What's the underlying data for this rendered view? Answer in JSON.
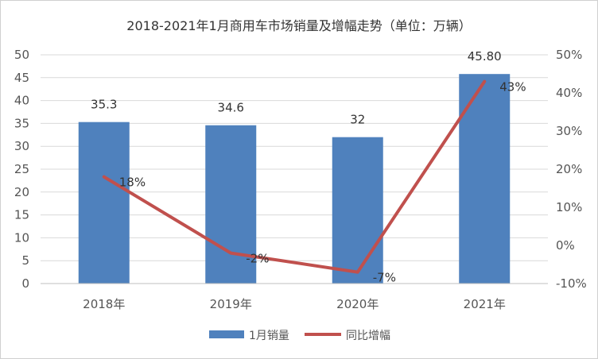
{
  "chart_data": {
    "type": "bar",
    "title": "2018-2021年1月商用车市场销量及增幅走势（单位：万辆）",
    "categories": [
      "2018年",
      "2019年",
      "2020年",
      "2021年"
    ],
    "series": [
      {
        "name": "1月销量",
        "type": "bar",
        "axis": "left",
        "values": [
          35.3,
          34.6,
          32,
          45.8
        ],
        "labels": [
          "35.3",
          "34.6",
          "32",
          "45.80"
        ],
        "color": "#4f81bd"
      },
      {
        "name": "同比增幅",
        "type": "line",
        "axis": "right",
        "values": [
          18,
          -2,
          -7,
          43
        ],
        "labels": [
          "18%",
          "-2%",
          "-7%",
          "43%"
        ],
        "color": "#c0504d"
      }
    ],
    "y_left": {
      "lim": [
        0,
        50
      ],
      "ticks": [
        "0",
        "5",
        "10",
        "15",
        "20",
        "25",
        "30",
        "35",
        "40",
        "45",
        "50"
      ]
    },
    "y_right": {
      "lim": [
        -10,
        50
      ],
      "ticks": [
        "-10%",
        "0%",
        "10%",
        "20%",
        "30%",
        "40%",
        "50%"
      ]
    },
    "grid": true,
    "legend": "bottom"
  }
}
